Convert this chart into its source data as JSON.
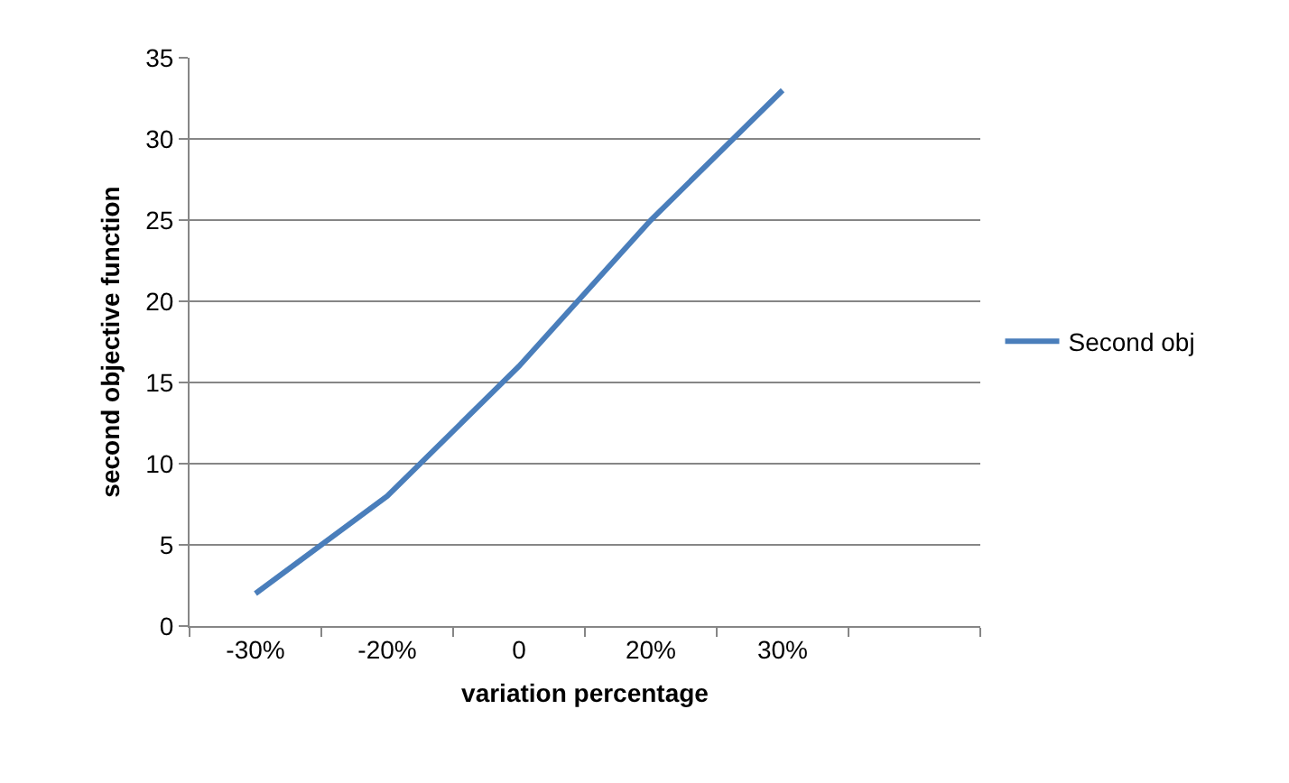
{
  "chart_data": {
    "type": "line",
    "xlabel": "variation percentage",
    "ylabel": "second objective function",
    "categories": [
      "-30%",
      "-20%",
      "0",
      "20%",
      "30%",
      null
    ],
    "series": [
      {
        "name": "Second obj",
        "color": "#4a7ebb",
        "values": [
          2,
          8,
          16,
          25,
          33,
          null
        ]
      }
    ],
    "ylim": [
      0,
      35
    ],
    "yticks": [
      0,
      5,
      10,
      15,
      20,
      25,
      30,
      35
    ],
    "grid": "y",
    "legend": "right",
    "marker": "none",
    "line_style": "solid"
  }
}
